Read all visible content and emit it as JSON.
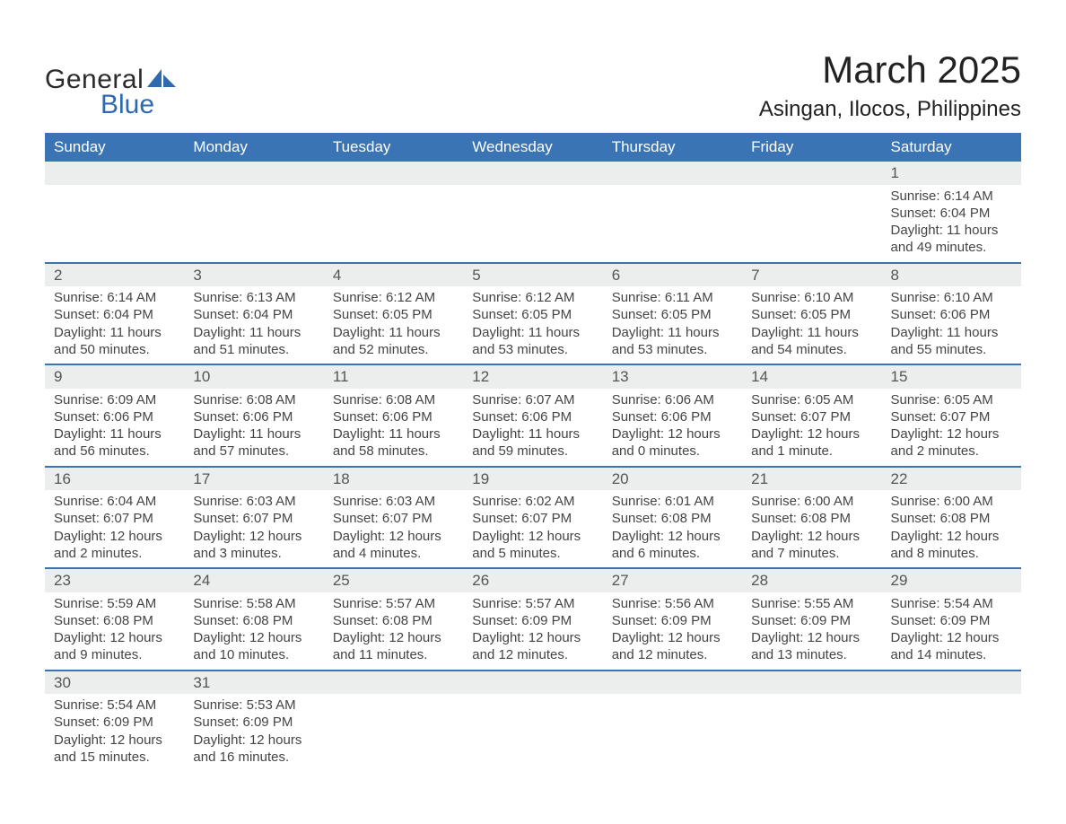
{
  "brand": {
    "word1": "General",
    "word2": "Blue"
  },
  "title": "March 2025",
  "location": "Asingan, Ilocos, Philippines",
  "colors": {
    "header_bg": "#3b74b4",
    "row_border": "#3b74b4",
    "daynum_bg": "#eceded",
    "page_bg": "#ffffff",
    "text": "#3b3b3b",
    "brand_blue": "#2e6aad"
  },
  "weekdays": [
    "Sunday",
    "Monday",
    "Tuesday",
    "Wednesday",
    "Thursday",
    "Friday",
    "Saturday"
  ],
  "weeks": [
    [
      {
        "day": "",
        "lines": []
      },
      {
        "day": "",
        "lines": []
      },
      {
        "day": "",
        "lines": []
      },
      {
        "day": "",
        "lines": []
      },
      {
        "day": "",
        "lines": []
      },
      {
        "day": "",
        "lines": []
      },
      {
        "day": "1",
        "lines": [
          "Sunrise: 6:14 AM",
          "Sunset: 6:04 PM",
          "Daylight: 11 hours and 49 minutes."
        ]
      }
    ],
    [
      {
        "day": "2",
        "lines": [
          "Sunrise: 6:14 AM",
          "Sunset: 6:04 PM",
          "Daylight: 11 hours and 50 minutes."
        ]
      },
      {
        "day": "3",
        "lines": [
          "Sunrise: 6:13 AM",
          "Sunset: 6:04 PM",
          "Daylight: 11 hours and 51 minutes."
        ]
      },
      {
        "day": "4",
        "lines": [
          "Sunrise: 6:12 AM",
          "Sunset: 6:05 PM",
          "Daylight: 11 hours and 52 minutes."
        ]
      },
      {
        "day": "5",
        "lines": [
          "Sunrise: 6:12 AM",
          "Sunset: 6:05 PM",
          "Daylight: 11 hours and 53 minutes."
        ]
      },
      {
        "day": "6",
        "lines": [
          "Sunrise: 6:11 AM",
          "Sunset: 6:05 PM",
          "Daylight: 11 hours and 53 minutes."
        ]
      },
      {
        "day": "7",
        "lines": [
          "Sunrise: 6:10 AM",
          "Sunset: 6:05 PM",
          "Daylight: 11 hours and 54 minutes."
        ]
      },
      {
        "day": "8",
        "lines": [
          "Sunrise: 6:10 AM",
          "Sunset: 6:06 PM",
          "Daylight: 11 hours and 55 minutes."
        ]
      }
    ],
    [
      {
        "day": "9",
        "lines": [
          "Sunrise: 6:09 AM",
          "Sunset: 6:06 PM",
          "Daylight: 11 hours and 56 minutes."
        ]
      },
      {
        "day": "10",
        "lines": [
          "Sunrise: 6:08 AM",
          "Sunset: 6:06 PM",
          "Daylight: 11 hours and 57 minutes."
        ]
      },
      {
        "day": "11",
        "lines": [
          "Sunrise: 6:08 AM",
          "Sunset: 6:06 PM",
          "Daylight: 11 hours and 58 minutes."
        ]
      },
      {
        "day": "12",
        "lines": [
          "Sunrise: 6:07 AM",
          "Sunset: 6:06 PM",
          "Daylight: 11 hours and 59 minutes."
        ]
      },
      {
        "day": "13",
        "lines": [
          "Sunrise: 6:06 AM",
          "Sunset: 6:06 PM",
          "Daylight: 12 hours and 0 minutes."
        ]
      },
      {
        "day": "14",
        "lines": [
          "Sunrise: 6:05 AM",
          "Sunset: 6:07 PM",
          "Daylight: 12 hours and 1 minute."
        ]
      },
      {
        "day": "15",
        "lines": [
          "Sunrise: 6:05 AM",
          "Sunset: 6:07 PM",
          "Daylight: 12 hours and 2 minutes."
        ]
      }
    ],
    [
      {
        "day": "16",
        "lines": [
          "Sunrise: 6:04 AM",
          "Sunset: 6:07 PM",
          "Daylight: 12 hours and 2 minutes."
        ]
      },
      {
        "day": "17",
        "lines": [
          "Sunrise: 6:03 AM",
          "Sunset: 6:07 PM",
          "Daylight: 12 hours and 3 minutes."
        ]
      },
      {
        "day": "18",
        "lines": [
          "Sunrise: 6:03 AM",
          "Sunset: 6:07 PM",
          "Daylight: 12 hours and 4 minutes."
        ]
      },
      {
        "day": "19",
        "lines": [
          "Sunrise: 6:02 AM",
          "Sunset: 6:07 PM",
          "Daylight: 12 hours and 5 minutes."
        ]
      },
      {
        "day": "20",
        "lines": [
          "Sunrise: 6:01 AM",
          "Sunset: 6:08 PM",
          "Daylight: 12 hours and 6 minutes."
        ]
      },
      {
        "day": "21",
        "lines": [
          "Sunrise: 6:00 AM",
          "Sunset: 6:08 PM",
          "Daylight: 12 hours and 7 minutes."
        ]
      },
      {
        "day": "22",
        "lines": [
          "Sunrise: 6:00 AM",
          "Sunset: 6:08 PM",
          "Daylight: 12 hours and 8 minutes."
        ]
      }
    ],
    [
      {
        "day": "23",
        "lines": [
          "Sunrise: 5:59 AM",
          "Sunset: 6:08 PM",
          "Daylight: 12 hours and 9 minutes."
        ]
      },
      {
        "day": "24",
        "lines": [
          "Sunrise: 5:58 AM",
          "Sunset: 6:08 PM",
          "Daylight: 12 hours and 10 minutes."
        ]
      },
      {
        "day": "25",
        "lines": [
          "Sunrise: 5:57 AM",
          "Sunset: 6:08 PM",
          "Daylight: 12 hours and 11 minutes."
        ]
      },
      {
        "day": "26",
        "lines": [
          "Sunrise: 5:57 AM",
          "Sunset: 6:09 PM",
          "Daylight: 12 hours and 12 minutes."
        ]
      },
      {
        "day": "27",
        "lines": [
          "Sunrise: 5:56 AM",
          "Sunset: 6:09 PM",
          "Daylight: 12 hours and 12 minutes."
        ]
      },
      {
        "day": "28",
        "lines": [
          "Sunrise: 5:55 AM",
          "Sunset: 6:09 PM",
          "Daylight: 12 hours and 13 minutes."
        ]
      },
      {
        "day": "29",
        "lines": [
          "Sunrise: 5:54 AM",
          "Sunset: 6:09 PM",
          "Daylight: 12 hours and 14 minutes."
        ]
      }
    ],
    [
      {
        "day": "30",
        "lines": [
          "Sunrise: 5:54 AM",
          "Sunset: 6:09 PM",
          "Daylight: 12 hours and 15 minutes."
        ]
      },
      {
        "day": "31",
        "lines": [
          "Sunrise: 5:53 AM",
          "Sunset: 6:09 PM",
          "Daylight: 12 hours and 16 minutes."
        ]
      },
      {
        "day": "",
        "lines": []
      },
      {
        "day": "",
        "lines": []
      },
      {
        "day": "",
        "lines": []
      },
      {
        "day": "",
        "lines": []
      },
      {
        "day": "",
        "lines": []
      }
    ]
  ]
}
